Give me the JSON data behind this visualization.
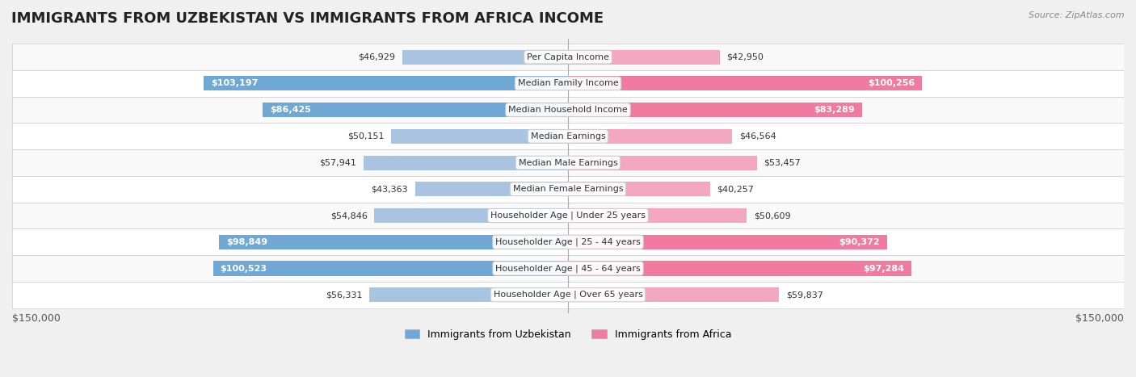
{
  "title": "IMMIGRANTS FROM UZBEKISTAN VS IMMIGRANTS FROM AFRICA INCOME",
  "source": "Source: ZipAtlas.com",
  "categories": [
    "Per Capita Income",
    "Median Family Income",
    "Median Household Income",
    "Median Earnings",
    "Median Male Earnings",
    "Median Female Earnings",
    "Householder Age | Under 25 years",
    "Householder Age | 25 - 44 years",
    "Householder Age | 45 - 64 years",
    "Householder Age | Over 65 years"
  ],
  "uzbekistan_values": [
    46929,
    103197,
    86425,
    50151,
    57941,
    43363,
    54846,
    98849,
    100523,
    56331
  ],
  "africa_values": [
    42950,
    100256,
    83289,
    46564,
    53457,
    40257,
    50609,
    90372,
    97284,
    59837
  ],
  "uzbekistan_labels": [
    "$46,929",
    "$103,197",
    "$86,425",
    "$50,151",
    "$57,941",
    "$43,363",
    "$54,846",
    "$98,849",
    "$100,523",
    "$56,331"
  ],
  "africa_labels": [
    "$42,950",
    "$100,256",
    "$83,289",
    "$46,564",
    "$53,457",
    "$40,257",
    "$50,609",
    "$90,372",
    "$97,284",
    "$59,837"
  ],
  "uzbekistan_color_light": "#a8c4e0",
  "uzbekistan_color_dark": "#6fa8d4",
  "africa_color_light": "#f4a7c0",
  "africa_color_dark": "#f07aa0",
  "max_value": 150000,
  "bar_height": 0.55,
  "background_color": "#f5f5f5",
  "row_bg_light": "#f9f9f9",
  "row_bg_white": "#ffffff",
  "legend_uzbekistan": "Immigrants from Uzbekistan",
  "legend_africa": "Immigrants from Africa",
  "xlabel_left": "$150,000",
  "xlabel_right": "$150,000",
  "title_fontsize": 13,
  "label_fontsize": 8,
  "category_fontsize": 8
}
